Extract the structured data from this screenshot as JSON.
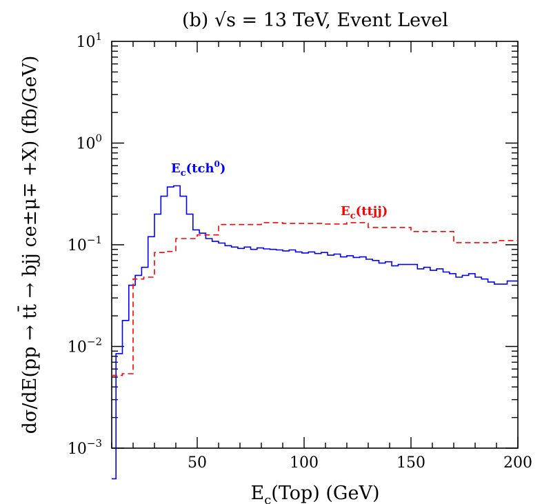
{
  "chart_data": {
    "type": "line",
    "title": "(b) √s = 13 TeV, Event Level",
    "xlabel": "E_c(Top) (GeV)",
    "ylabel": "dσ/dE(pp → tt̄ → bjj ce±μ∓ +X) (fb/GeV)",
    "xlim": [
      10,
      200
    ],
    "ylim": [
      0.001,
      10
    ],
    "yscale": "log",
    "x_ticks": [
      "50",
      "100",
      "150",
      "200"
    ],
    "y_ticks": [
      "10⁻³",
      "10⁻²",
      "10⁻¹",
      "10⁰",
      "10¹"
    ],
    "series": [
      {
        "name": "E_c(tch⁰)",
        "color": "#0000ff",
        "style": "solid",
        "label_base": "E",
        "label_sub": "c",
        "label_rest": "(tch",
        "label_sup": "0",
        "label_end": ")",
        "edges": [
          10,
          12,
          15,
          18,
          21,
          24,
          27,
          30,
          33,
          36,
          39,
          42,
          45,
          48,
          51,
          54,
          57,
          60,
          63,
          66,
          69,
          72,
          75,
          78,
          81,
          84,
          87,
          90,
          93,
          96,
          99,
          102,
          105,
          108,
          111,
          114,
          117,
          120,
          123,
          126,
          129,
          132,
          135,
          138,
          141,
          144,
          147,
          150,
          153,
          156,
          159,
          162,
          165,
          168,
          171,
          174,
          177,
          180,
          183,
          186,
          189,
          192,
          195,
          200
        ],
        "values": [
          0.0005,
          0.0085,
          0.018,
          0.04,
          0.05,
          0.06,
          0.12,
          0.2,
          0.3,
          0.37,
          0.38,
          0.3,
          0.2,
          0.14,
          0.13,
          0.115,
          0.108,
          0.104,
          0.098,
          0.095,
          0.092,
          0.095,
          0.09,
          0.093,
          0.091,
          0.09,
          0.089,
          0.087,
          0.089,
          0.085,
          0.083,
          0.085,
          0.082,
          0.084,
          0.079,
          0.081,
          0.076,
          0.078,
          0.075,
          0.076,
          0.072,
          0.07,
          0.066,
          0.068,
          0.062,
          0.064,
          0.064,
          0.064,
          0.058,
          0.06,
          0.056,
          0.058,
          0.054,
          0.052,
          0.048,
          0.05,
          0.052,
          0.048,
          0.046,
          0.043,
          0.041,
          0.041,
          0.044
        ]
      },
      {
        "name": "E_c(ttjj)",
        "color": "#ff0000",
        "style": "dashed",
        "label_base": "E",
        "label_sub": "c",
        "label_rest": "(ttjj)",
        "label_sup": "",
        "label_end": "",
        "edges": [
          10,
          15,
          20,
          25,
          30,
          35,
          40,
          50,
          60,
          70,
          80,
          90,
          100,
          110,
          120,
          130,
          140,
          150,
          160,
          170,
          180,
          190,
          200
        ],
        "values": [
          0.0052,
          0.0054,
          0.046,
          0.048,
          0.084,
          0.086,
          0.115,
          0.125,
          0.158,
          0.158,
          0.165,
          0.162,
          0.162,
          0.16,
          0.165,
          0.148,
          0.148,
          0.135,
          0.135,
          0.105,
          0.105,
          0.11
        ]
      }
    ]
  }
}
